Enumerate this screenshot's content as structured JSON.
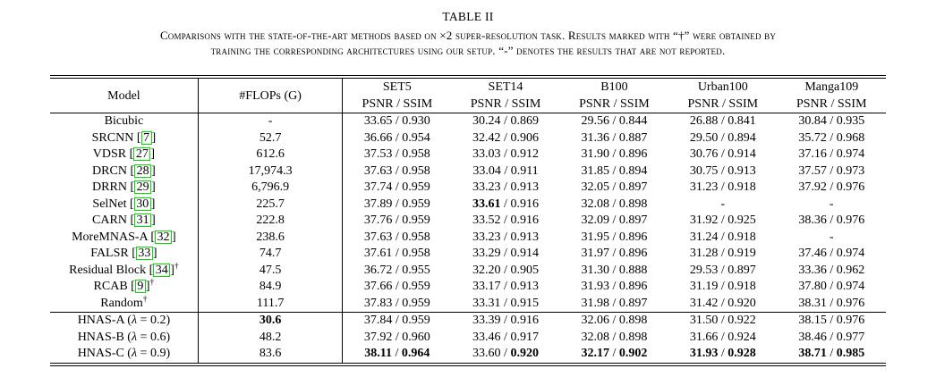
{
  "caption": {
    "label": "TABLE II",
    "lines": [
      "Comparisons with the state-of-the-art methods based on ×2 super-resolution task. Results marked with “†” were obtained by",
      "training the corresponding architectures using our setup. “-” denotes the results that are not reported."
    ]
  },
  "colors": {
    "text": "#000000",
    "background": "#ffffff",
    "citation_box": "#00e000"
  },
  "table": {
    "columns": [
      "Model",
      "#FLOPs (G)",
      "SET5",
      "SET14",
      "B100",
      "Urban100",
      "Manga109"
    ],
    "sub_header": "PSNR / SSIM",
    "not_reported": "-",
    "rows": [
      {
        "name": "Bicubic",
        "cite": null,
        "dagger": false,
        "flops": "-",
        "flops_bold": false,
        "group_start": false,
        "cells": [
          {
            "psnr": "33.65",
            "ssim": "0.930",
            "psnr_bold": false,
            "ssim_bold": false
          },
          {
            "psnr": "30.24",
            "ssim": "0.869",
            "psnr_bold": false,
            "ssim_bold": false
          },
          {
            "psnr": "29.56",
            "ssim": "0.844",
            "psnr_bold": false,
            "ssim_bold": false
          },
          {
            "psnr": "26.88",
            "ssim": "0.841",
            "psnr_bold": false,
            "ssim_bold": false
          },
          {
            "psnr": "30.84",
            "ssim": "0.935",
            "psnr_bold": false,
            "ssim_bold": false
          }
        ]
      },
      {
        "name": "SRCNN",
        "cite": "7",
        "dagger": false,
        "flops": "52.7",
        "flops_bold": false,
        "group_start": false,
        "cells": [
          {
            "psnr": "36.66",
            "ssim": "0.954",
            "psnr_bold": false,
            "ssim_bold": false
          },
          {
            "psnr": "32.42",
            "ssim": "0.906",
            "psnr_bold": false,
            "ssim_bold": false
          },
          {
            "psnr": "31.36",
            "ssim": "0.887",
            "psnr_bold": false,
            "ssim_bold": false
          },
          {
            "psnr": "29.50",
            "ssim": "0.894",
            "psnr_bold": false,
            "ssim_bold": false
          },
          {
            "psnr": "35.72",
            "ssim": "0.968",
            "psnr_bold": false,
            "ssim_bold": false
          }
        ]
      },
      {
        "name": "VDSR",
        "cite": "27",
        "dagger": false,
        "flops": "612.6",
        "flops_bold": false,
        "group_start": false,
        "cells": [
          {
            "psnr": "37.53",
            "ssim": "0.958",
            "psnr_bold": false,
            "ssim_bold": false
          },
          {
            "psnr": "33.03",
            "ssim": "0.912",
            "psnr_bold": false,
            "ssim_bold": false
          },
          {
            "psnr": "31.90",
            "ssim": "0.896",
            "psnr_bold": false,
            "ssim_bold": false
          },
          {
            "psnr": "30.76",
            "ssim": "0.914",
            "psnr_bold": false,
            "ssim_bold": false
          },
          {
            "psnr": "37.16",
            "ssim": "0.974",
            "psnr_bold": false,
            "ssim_bold": false
          }
        ]
      },
      {
        "name": "DRCN",
        "cite": "28",
        "dagger": false,
        "flops": "17,974.3",
        "flops_bold": false,
        "group_start": false,
        "cells": [
          {
            "psnr": "37.63",
            "ssim": "0.958",
            "psnr_bold": false,
            "ssim_bold": false
          },
          {
            "psnr": "33.04",
            "ssim": "0.911",
            "psnr_bold": false,
            "ssim_bold": false
          },
          {
            "psnr": "31.85",
            "ssim": "0.894",
            "psnr_bold": false,
            "ssim_bold": false
          },
          {
            "psnr": "30.75",
            "ssim": "0.913",
            "psnr_bold": false,
            "ssim_bold": false
          },
          {
            "psnr": "37.57",
            "ssim": "0.973",
            "psnr_bold": false,
            "ssim_bold": false
          }
        ]
      },
      {
        "name": "DRRN",
        "cite": "29",
        "dagger": false,
        "flops": "6,796.9",
        "flops_bold": false,
        "group_start": false,
        "cells": [
          {
            "psnr": "37.74",
            "ssim": "0.959",
            "psnr_bold": false,
            "ssim_bold": false
          },
          {
            "psnr": "33.23",
            "ssim": "0.913",
            "psnr_bold": false,
            "ssim_bold": false
          },
          {
            "psnr": "32.05",
            "ssim": "0.897",
            "psnr_bold": false,
            "ssim_bold": false
          },
          {
            "psnr": "31.23",
            "ssim": "0.918",
            "psnr_bold": false,
            "ssim_bold": false
          },
          {
            "psnr": "37.92",
            "ssim": "0.976",
            "psnr_bold": false,
            "ssim_bold": false
          }
        ]
      },
      {
        "name": "SelNet",
        "cite": "30",
        "dagger": false,
        "flops": "225.7",
        "flops_bold": false,
        "group_start": false,
        "cells": [
          {
            "psnr": "37.89",
            "ssim": "0.959",
            "psnr_bold": false,
            "ssim_bold": false
          },
          {
            "psnr": "33.61",
            "ssim": "0.916",
            "psnr_bold": true,
            "ssim_bold": false
          },
          {
            "psnr": "32.08",
            "ssim": "0.898",
            "psnr_bold": false,
            "ssim_bold": false
          },
          {
            "dash": true
          },
          {
            "dash": true
          }
        ]
      },
      {
        "name": "CARN",
        "cite": "31",
        "dagger": false,
        "flops": "222.8",
        "flops_bold": false,
        "group_start": false,
        "cells": [
          {
            "psnr": "37.76",
            "ssim": "0.959",
            "psnr_bold": false,
            "ssim_bold": false
          },
          {
            "psnr": "33.52",
            "ssim": "0.916",
            "psnr_bold": false,
            "ssim_bold": false
          },
          {
            "psnr": "32.09",
            "ssim": "0.897",
            "psnr_bold": false,
            "ssim_bold": false
          },
          {
            "psnr": "31.92",
            "ssim": "0.925",
            "psnr_bold": false,
            "ssim_bold": false
          },
          {
            "psnr": "38.36",
            "ssim": "0.976",
            "psnr_bold": false,
            "ssim_bold": false
          }
        ]
      },
      {
        "name": "MoreMNAS-A",
        "cite": "32",
        "dagger": false,
        "flops": "238.6",
        "flops_bold": false,
        "group_start": false,
        "cells": [
          {
            "psnr": "37.63",
            "ssim": "0.958",
            "psnr_bold": false,
            "ssim_bold": false
          },
          {
            "psnr": "33.23",
            "ssim": "0.913",
            "psnr_bold": false,
            "ssim_bold": false
          },
          {
            "psnr": "31.95",
            "ssim": "0.896",
            "psnr_bold": false,
            "ssim_bold": false
          },
          {
            "psnr": "31.24",
            "ssim": "0.918",
            "psnr_bold": false,
            "ssim_bold": false
          },
          {
            "dash": true
          }
        ]
      },
      {
        "name": "FALSR",
        "cite": "33",
        "dagger": false,
        "flops": "74.7",
        "flops_bold": false,
        "group_start": false,
        "cells": [
          {
            "psnr": "37.61",
            "ssim": "0.958",
            "psnr_bold": false,
            "ssim_bold": false
          },
          {
            "psnr": "33.29",
            "ssim": "0.914",
            "psnr_bold": false,
            "ssim_bold": false
          },
          {
            "psnr": "31.97",
            "ssim": "0.896",
            "psnr_bold": false,
            "ssim_bold": false
          },
          {
            "psnr": "31.28",
            "ssim": "0.919",
            "psnr_bold": false,
            "ssim_bold": false
          },
          {
            "psnr": "37.46",
            "ssim": "0.974",
            "psnr_bold": false,
            "ssim_bold": false
          }
        ]
      },
      {
        "name": "Residual Block",
        "cite": "34",
        "dagger": true,
        "flops": "47.5",
        "flops_bold": false,
        "group_start": false,
        "cells": [
          {
            "psnr": "36.72",
            "ssim": "0.955",
            "psnr_bold": false,
            "ssim_bold": false
          },
          {
            "psnr": "32.20",
            "ssim": "0.905",
            "psnr_bold": false,
            "ssim_bold": false
          },
          {
            "psnr": "31.30",
            "ssim": "0.888",
            "psnr_bold": false,
            "ssim_bold": false
          },
          {
            "psnr": "29.53",
            "ssim": "0.897",
            "psnr_bold": false,
            "ssim_bold": false
          },
          {
            "psnr": "33.36",
            "ssim": "0.962",
            "psnr_bold": false,
            "ssim_bold": false
          }
        ]
      },
      {
        "name": "RCAB",
        "cite": "9",
        "dagger": true,
        "flops": "84.9",
        "flops_bold": false,
        "group_start": false,
        "cells": [
          {
            "psnr": "37.66",
            "ssim": "0.959",
            "psnr_bold": false,
            "ssim_bold": false
          },
          {
            "psnr": "33.17",
            "ssim": "0.913",
            "psnr_bold": false,
            "ssim_bold": false
          },
          {
            "psnr": "31.93",
            "ssim": "0.896",
            "psnr_bold": false,
            "ssim_bold": false
          },
          {
            "psnr": "31.19",
            "ssim": "0.918",
            "psnr_bold": false,
            "ssim_bold": false
          },
          {
            "psnr": "37.80",
            "ssim": "0.974",
            "psnr_bold": false,
            "ssim_bold": false
          }
        ]
      },
      {
        "name": "Random",
        "cite": null,
        "dagger": true,
        "flops": "111.7",
        "flops_bold": false,
        "group_start": false,
        "cells": [
          {
            "psnr": "37.83",
            "ssim": "0.959",
            "psnr_bold": false,
            "ssim_bold": false
          },
          {
            "psnr": "33.31",
            "ssim": "0.915",
            "psnr_bold": false,
            "ssim_bold": false
          },
          {
            "psnr": "31.98",
            "ssim": "0.897",
            "psnr_bold": false,
            "ssim_bold": false
          },
          {
            "psnr": "31.42",
            "ssim": "0.920",
            "psnr_bold": false,
            "ssim_bold": false
          },
          {
            "psnr": "38.31",
            "ssim": "0.976",
            "psnr_bold": false,
            "ssim_bold": false
          }
        ]
      },
      {
        "name": "HNAS-A (λ = 0.2)",
        "cite": null,
        "dagger": false,
        "flops": "30.6",
        "flops_bold": true,
        "group_start": true,
        "cells": [
          {
            "psnr": "37.84",
            "ssim": "0.959",
            "psnr_bold": false,
            "ssim_bold": false
          },
          {
            "psnr": "33.39",
            "ssim": "0.916",
            "psnr_bold": false,
            "ssim_bold": false
          },
          {
            "psnr": "32.06",
            "ssim": "0.898",
            "psnr_bold": false,
            "ssim_bold": false
          },
          {
            "psnr": "31.50",
            "ssim": "0.922",
            "psnr_bold": false,
            "ssim_bold": false
          },
          {
            "psnr": "38.15",
            "ssim": "0.976",
            "psnr_bold": false,
            "ssim_bold": false
          }
        ]
      },
      {
        "name": "HNAS-B (λ = 0.6)",
        "cite": null,
        "dagger": false,
        "flops": "48.2",
        "flops_bold": false,
        "group_start": false,
        "cells": [
          {
            "psnr": "37.92",
            "ssim": "0.960",
            "psnr_bold": false,
            "ssim_bold": false
          },
          {
            "psnr": "33.46",
            "ssim": "0.917",
            "psnr_bold": false,
            "ssim_bold": false
          },
          {
            "psnr": "32.08",
            "ssim": "0.898",
            "psnr_bold": false,
            "ssim_bold": false
          },
          {
            "psnr": "31.66",
            "ssim": "0.924",
            "psnr_bold": false,
            "ssim_bold": false
          },
          {
            "psnr": "38.46",
            "ssim": "0.977",
            "psnr_bold": false,
            "ssim_bold": false
          }
        ]
      },
      {
        "name": "HNAS-C (λ = 0.9)",
        "cite": null,
        "dagger": false,
        "flops": "83.6",
        "flops_bold": false,
        "group_start": false,
        "cells": [
          {
            "psnr": "38.11",
            "ssim": "0.964",
            "psnr_bold": true,
            "ssim_bold": true
          },
          {
            "psnr": "33.60",
            "ssim": "0.920",
            "psnr_bold": false,
            "ssim_bold": true
          },
          {
            "psnr": "32.17",
            "ssim": "0.902",
            "psnr_bold": true,
            "ssim_bold": true
          },
          {
            "psnr": "31.93",
            "ssim": "0.928",
            "psnr_bold": true,
            "ssim_bold": true
          },
          {
            "psnr": "38.71",
            "ssim": "0.985",
            "psnr_bold": true,
            "ssim_bold": true
          }
        ]
      }
    ]
  }
}
